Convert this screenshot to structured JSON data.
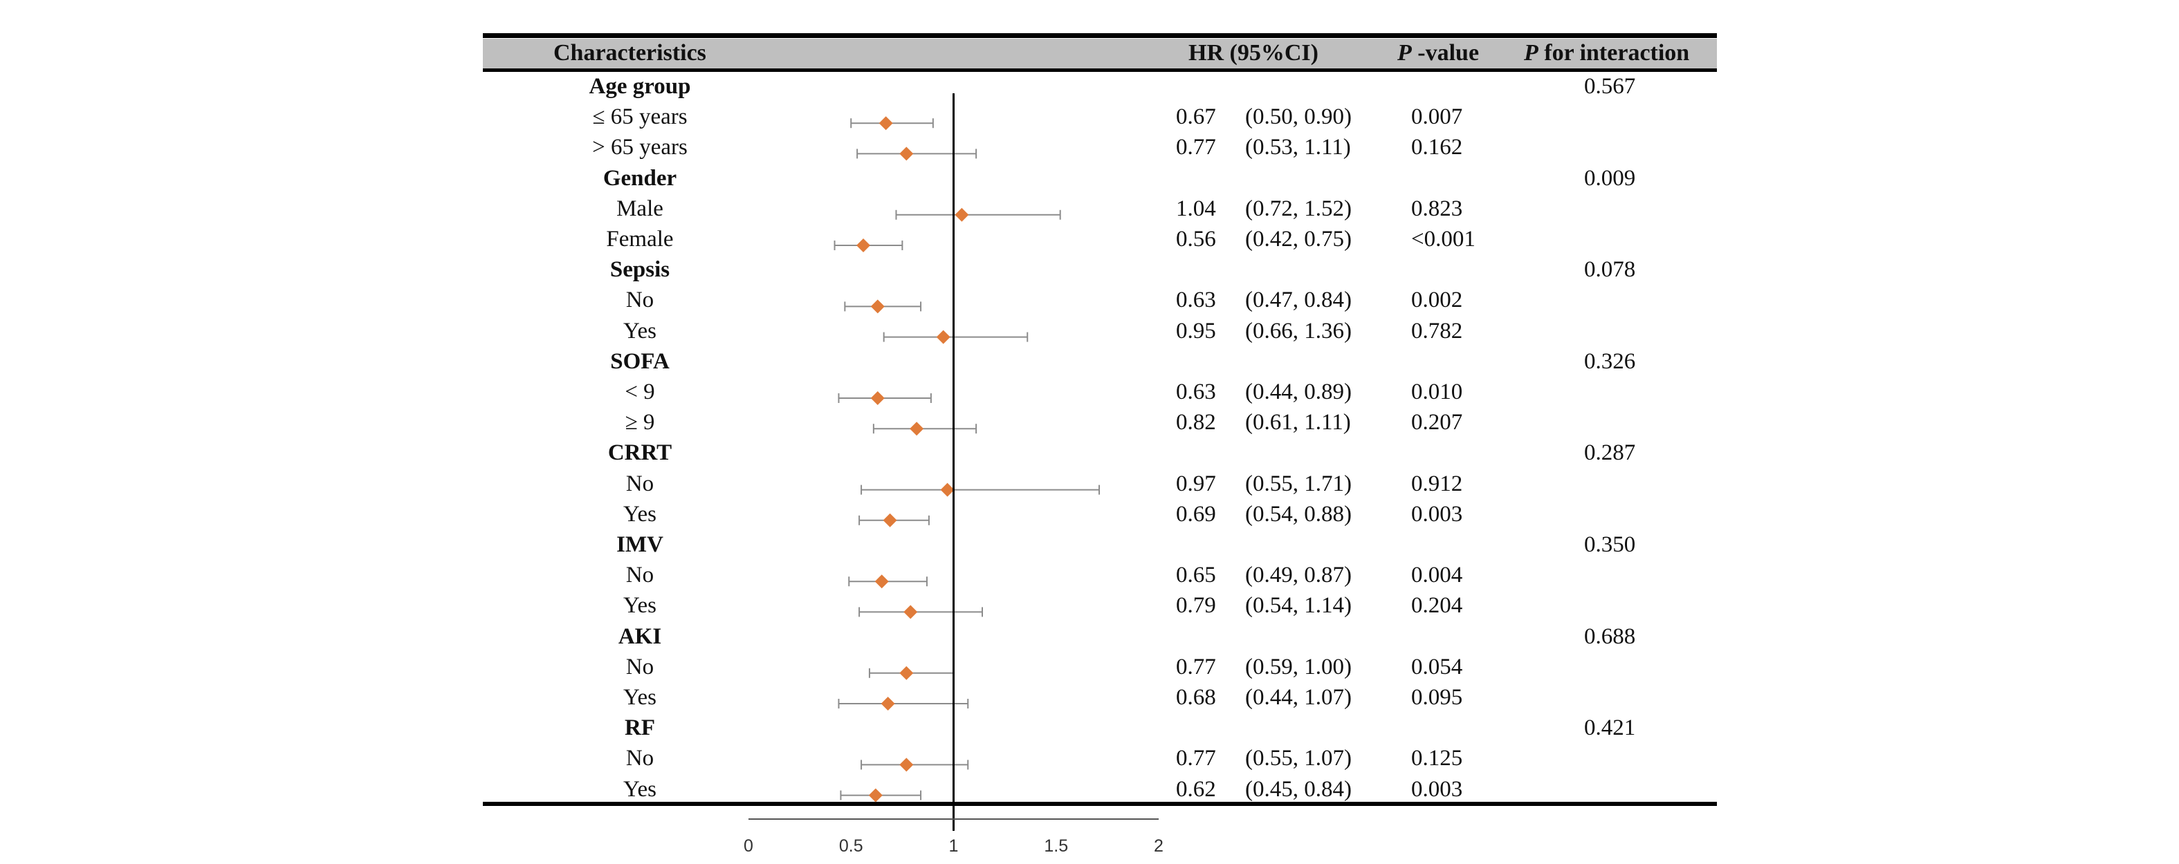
{
  "chart_data": {
    "type": "forest",
    "columns": {
      "characteristics": "Characteristics",
      "hr": "HR (95%CI)",
      "p_italic": "P",
      "p_rest": " -value",
      "pint_italic": "P",
      "pint_rest": " for interaction"
    },
    "rows": [
      {
        "label": "Age group",
        "is_group": true,
        "p_interaction": "0.567"
      },
      {
        "label": "≤ 65 years",
        "is_group": false,
        "hr": 0.67,
        "lo": 0.5,
        "hi": 0.9,
        "hr_text": "0.67",
        "ci_text": "(0.50, 0.90)",
        "p": "0.007"
      },
      {
        "label": "> 65 years",
        "is_group": false,
        "hr": 0.77,
        "lo": 0.53,
        "hi": 1.11,
        "hr_text": "0.77",
        "ci_text": "(0.53, 1.11)",
        "p": "0.162"
      },
      {
        "label": "Gender",
        "is_group": true,
        "p_interaction": "0.009"
      },
      {
        "label": "Male",
        "is_group": false,
        "hr": 1.04,
        "lo": 0.72,
        "hi": 1.52,
        "hr_text": "1.04",
        "ci_text": "(0.72, 1.52)",
        "p": "0.823"
      },
      {
        "label": "Female",
        "is_group": false,
        "hr": 0.56,
        "lo": 0.42,
        "hi": 0.75,
        "hr_text": "0.56",
        "ci_text": "(0.42, 0.75)",
        "p": "<0.001"
      },
      {
        "label": "Sepsis",
        "is_group": true,
        "p_interaction": "0.078"
      },
      {
        "label": "No",
        "is_group": false,
        "hr": 0.63,
        "lo": 0.47,
        "hi": 0.84,
        "hr_text": "0.63",
        "ci_text": "(0.47, 0.84)",
        "p": "0.002"
      },
      {
        "label": "Yes",
        "is_group": false,
        "hr": 0.95,
        "lo": 0.66,
        "hi": 1.36,
        "hr_text": "0.95",
        "ci_text": "(0.66, 1.36)",
        "p": "0.782"
      },
      {
        "label": "SOFA",
        "is_group": true,
        "p_interaction": "0.326"
      },
      {
        "label": "< 9",
        "is_group": false,
        "hr": 0.63,
        "lo": 0.44,
        "hi": 0.89,
        "hr_text": "0.63",
        "ci_text": "(0.44, 0.89)",
        "p": "0.010"
      },
      {
        "label": "≥ 9",
        "is_group": false,
        "hr": 0.82,
        "lo": 0.61,
        "hi": 1.11,
        "hr_text": "0.82",
        "ci_text": "(0.61, 1.11)",
        "p": "0.207"
      },
      {
        "label": "CRRT",
        "is_group": true,
        "p_interaction": "0.287"
      },
      {
        "label": "No",
        "is_group": false,
        "hr": 0.97,
        "lo": 0.55,
        "hi": 1.71,
        "hr_text": "0.97",
        "ci_text": "(0.55, 1.71)",
        "p": "0.912"
      },
      {
        "label": "Yes",
        "is_group": false,
        "hr": 0.69,
        "lo": 0.54,
        "hi": 0.88,
        "hr_text": "0.69",
        "ci_text": "(0.54, 0.88)",
        "p": "0.003"
      },
      {
        "label": "IMV",
        "is_group": true,
        "p_interaction": "0.350"
      },
      {
        "label": "No",
        "is_group": false,
        "hr": 0.65,
        "lo": 0.49,
        "hi": 0.87,
        "hr_text": "0.65",
        "ci_text": "(0.49, 0.87)",
        "p": "0.004"
      },
      {
        "label": "Yes",
        "is_group": false,
        "hr": 0.79,
        "lo": 0.54,
        "hi": 1.14,
        "hr_text": "0.79",
        "ci_text": "(0.54, 1.14)",
        "p": "0.204"
      },
      {
        "label": "AKI",
        "is_group": true,
        "p_interaction": "0.688"
      },
      {
        "label": "No",
        "is_group": false,
        "hr": 0.77,
        "lo": 0.59,
        "hi": 1.0,
        "hr_text": "0.77",
        "ci_text": "(0.59, 1.00)",
        "p": "0.054"
      },
      {
        "label": "Yes",
        "is_group": false,
        "hr": 0.68,
        "lo": 0.44,
        "hi": 1.07,
        "hr_text": "0.68",
        "ci_text": "(0.44, 1.07)",
        "p": "0.095"
      },
      {
        "label": "RF",
        "is_group": true,
        "p_interaction": "0.421"
      },
      {
        "label": "No",
        "is_group": false,
        "hr": 0.77,
        "lo": 0.55,
        "hi": 1.07,
        "hr_text": "0.77",
        "ci_text": "(0.55, 1.07)",
        "p": "0.125"
      },
      {
        "label": "Yes",
        "is_group": false,
        "hr": 0.62,
        "lo": 0.45,
        "hi": 0.84,
        "hr_text": "0.62",
        "ci_text": "(0.45, 0.84)",
        "p": "0.003"
      }
    ],
    "x_axis": {
      "min": 0,
      "max": 2,
      "ticks": [
        "0",
        "0.5",
        "1",
        "1.5",
        "2"
      ],
      "reference": 1
    },
    "marker_color": "#e07b39",
    "whisker_color": "#8c8c8c"
  }
}
